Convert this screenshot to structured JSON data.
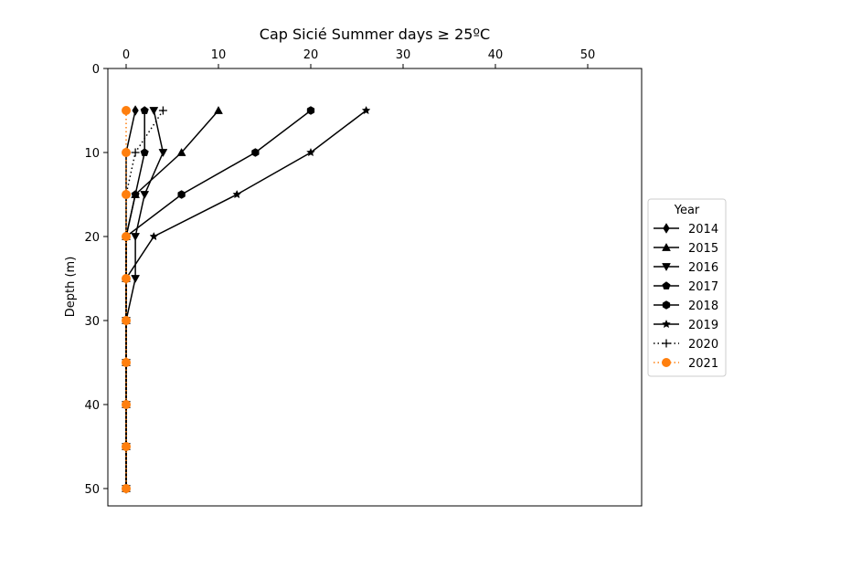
{
  "chart_data": {
    "type": "line",
    "title": "Cap Sicié Summer days ≥ 25ºC",
    "xlabel": "",
    "ylabel": "Depth (m)",
    "xlim": [
      -2,
      56
    ],
    "ylim": [
      52,
      0
    ],
    "y_inverted": true,
    "x_axis_position": "top",
    "x_ticks": [
      0,
      10,
      20,
      30,
      40,
      50
    ],
    "y_ticks": [
      0,
      10,
      20,
      30,
      40,
      50
    ],
    "grid": false,
    "legend": {
      "title": "Year",
      "placement": "outside-right"
    },
    "depths": [
      5,
      10,
      15,
      20,
      25,
      30,
      35,
      40,
      45,
      50
    ],
    "series": [
      {
        "name": "2014",
        "marker": "diamond",
        "color": "#000000",
        "dash": "solid",
        "values": [
          1,
          0,
          0,
          0,
          0,
          0,
          0,
          0,
          0,
          0
        ]
      },
      {
        "name": "2015",
        "marker": "triangle-up",
        "color": "#000000",
        "dash": "solid",
        "values": [
          10,
          6,
          1,
          0,
          0,
          0,
          0,
          0,
          0,
          0
        ]
      },
      {
        "name": "2016",
        "marker": "triangle-down",
        "color": "#000000",
        "dash": "solid",
        "values": [
          3,
          4,
          2,
          1,
          1,
          0,
          0,
          0,
          0,
          0
        ]
      },
      {
        "name": "2017",
        "marker": "pentagon",
        "color": "#000000",
        "dash": "solid",
        "values": [
          2,
          2,
          1,
          0,
          0,
          0,
          0,
          0,
          0,
          0
        ]
      },
      {
        "name": "2018",
        "marker": "hexagon",
        "color": "#000000",
        "dash": "solid",
        "values": [
          20,
          14,
          6,
          0,
          0,
          0,
          0,
          0,
          0,
          0
        ]
      },
      {
        "name": "2019",
        "marker": "star",
        "color": "#000000",
        "dash": "solid",
        "values": [
          26,
          20,
          12,
          3,
          0,
          0,
          0,
          0,
          0,
          0
        ]
      },
      {
        "name": "2020",
        "marker": "plus",
        "color": "#000000",
        "dash": "dotted",
        "values": [
          4,
          1,
          0,
          0,
          0,
          0,
          0,
          0,
          0,
          0
        ]
      },
      {
        "name": "2021",
        "marker": "circle",
        "color": "#ff7f0e",
        "dash": "dotted",
        "values": [
          0,
          0,
          0,
          0,
          0,
          0,
          0,
          0,
          0,
          0
        ]
      }
    ]
  }
}
